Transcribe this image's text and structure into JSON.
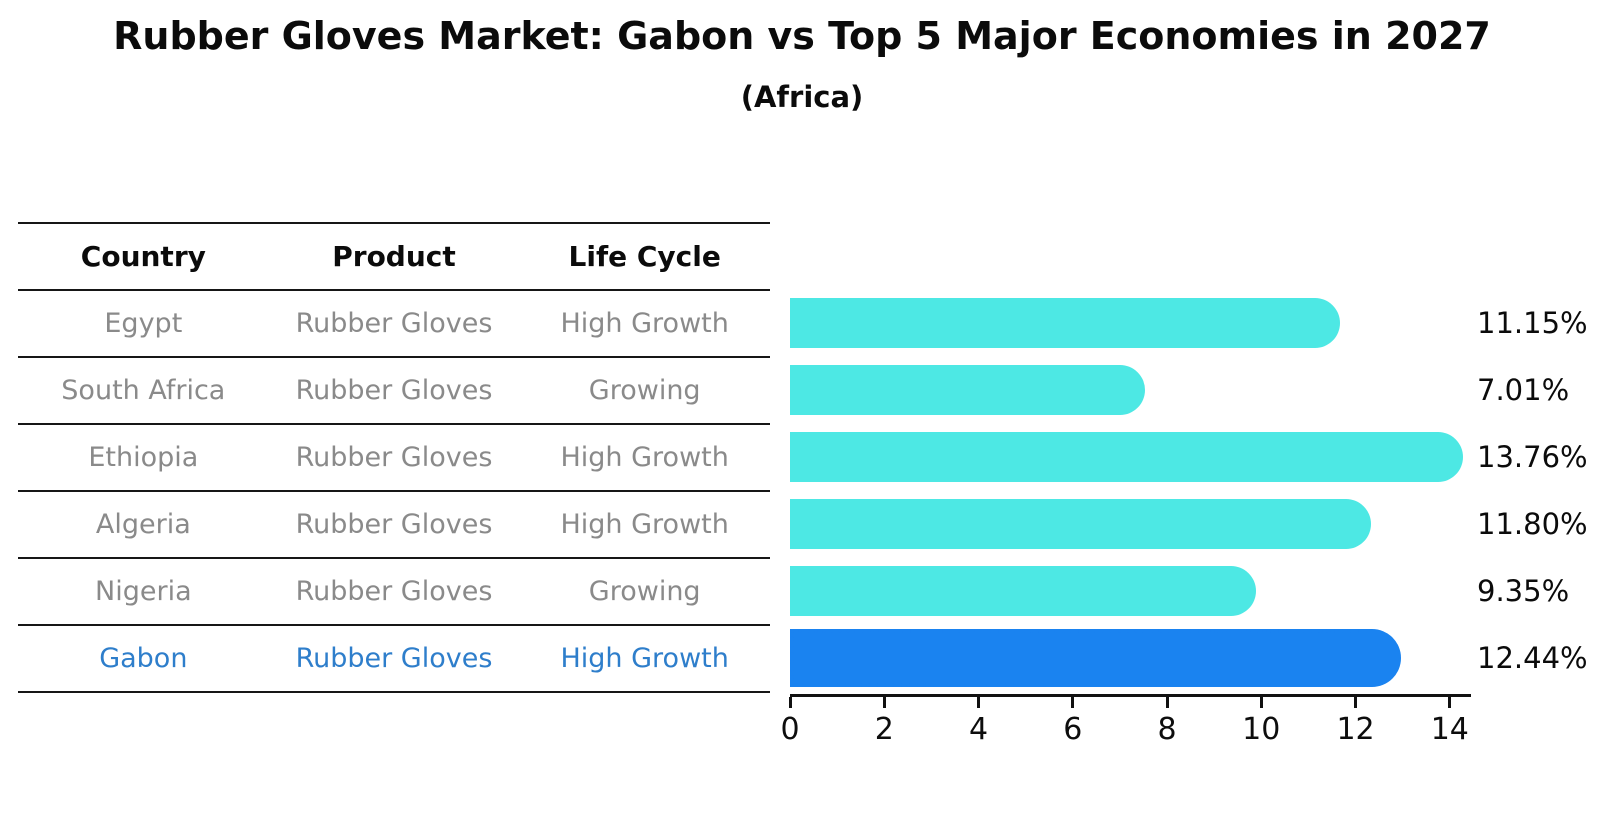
{
  "title": "Rubber Gloves Market: Gabon vs Top 5 Major Economies in 2027",
  "subtitle": "(Africa)",
  "table": {
    "columns": [
      "Country",
      "Product",
      "Life Cycle"
    ],
    "rows": [
      {
        "country": "Egypt",
        "product": "Rubber Gloves",
        "life_cycle": "High Growth",
        "highlight": false
      },
      {
        "country": "South Africa",
        "product": "Rubber Gloves",
        "life_cycle": "Growing",
        "highlight": false
      },
      {
        "country": "Ethiopia",
        "product": "Rubber Gloves",
        "life_cycle": "High Growth",
        "highlight": false
      },
      {
        "country": "Algeria",
        "product": "Rubber Gloves",
        "life_cycle": "High Growth",
        "highlight": false
      },
      {
        "country": "Nigeria",
        "product": "Rubber Gloves",
        "life_cycle": "Growing",
        "highlight": false
      },
      {
        "country": "Gabon",
        "product": "Rubber Gloves",
        "life_cycle": "High Growth",
        "highlight": true
      }
    ]
  },
  "chart_data": {
    "type": "bar",
    "orientation": "horizontal",
    "title": "Rubber Gloves Market: Gabon vs Top 5 Major Economies in 2027",
    "subtitle": "(Africa)",
    "categories": [
      "Egypt",
      "South Africa",
      "Ethiopia",
      "Algeria",
      "Nigeria",
      "Gabon"
    ],
    "values": [
      11.15,
      7.01,
      13.76,
      11.8,
      9.35,
      12.44
    ],
    "value_labels": [
      "11.15%",
      "7.01%",
      "13.76%",
      "11.80%",
      "9.35%",
      "12.44%"
    ],
    "highlight_index": 5,
    "xlim": [
      0,
      14.45
    ],
    "xticks": [
      "0",
      "2",
      "4",
      "6",
      "8",
      "10",
      "12",
      "14"
    ],
    "xtick_values": [
      0,
      2,
      4,
      6,
      8,
      10,
      12,
      14
    ],
    "grid": false,
    "legend": false,
    "colors": {
      "bar": "#4de8e4",
      "highlight_bar": "#1a83f0",
      "highlight_text": "#2e7ecb",
      "row_text": "#8a8a8a",
      "header_text": "#0b0b0b",
      "axis": "#111111"
    }
  }
}
